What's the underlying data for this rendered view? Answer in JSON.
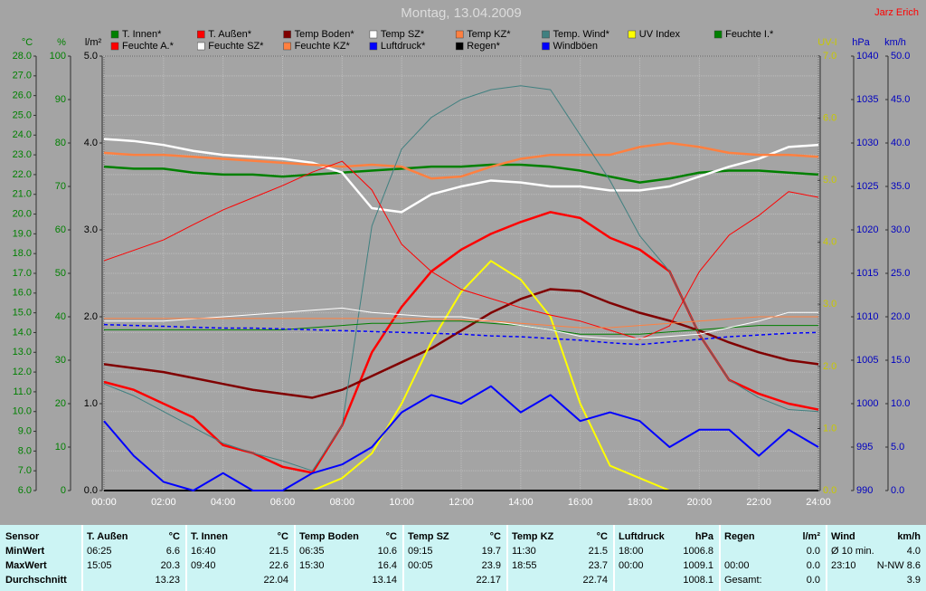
{
  "chart_data": {
    "type": "line",
    "title": "Montag, 13.04.2009",
    "author": "Jarz Erich",
    "xlim": [
      0,
      24
    ],
    "xticks": [
      {
        "value": 0,
        "label": "00:00"
      },
      {
        "value": 2,
        "label": "02:00"
      },
      {
        "value": 4,
        "label": "04:00"
      },
      {
        "value": 6,
        "label": "06:00"
      },
      {
        "value": 8,
        "label": "08:00"
      },
      {
        "value": 10,
        "label": "10:00"
      },
      {
        "value": 12,
        "label": "12:00"
      },
      {
        "value": 14,
        "label": "14:00"
      },
      {
        "value": 16,
        "label": "16:00"
      },
      {
        "value": 18,
        "label": "18:00"
      },
      {
        "value": 20,
        "label": "20:00"
      },
      {
        "value": 22,
        "label": "22:00"
      },
      {
        "value": 24,
        "label": "24:00"
      }
    ],
    "x": [
      0,
      1,
      2,
      3,
      4,
      5,
      6,
      7,
      8,
      9,
      10,
      11,
      12,
      13,
      14,
      15,
      16,
      17,
      18,
      19,
      20,
      21,
      22,
      23,
      24
    ],
    "axes": [
      {
        "label": "°C",
        "color": "#008000",
        "grid": true,
        "lim": [
          6,
          28
        ],
        "ticks": [
          {
            "value": 6,
            "label": "6.0"
          },
          {
            "value": 7,
            "label": "7.0"
          },
          {
            "value": 8,
            "label": "8.0"
          },
          {
            "value": 9,
            "label": "9.0"
          },
          {
            "value": 10,
            "label": "10.0"
          },
          {
            "value": 11,
            "label": "11.0"
          },
          {
            "value": 12,
            "label": "12.0"
          },
          {
            "value": 13,
            "label": "13.0"
          },
          {
            "value": 14,
            "label": "14.0"
          },
          {
            "value": 15,
            "label": "15.0"
          },
          {
            "value": 16,
            "label": "16.0"
          },
          {
            "value": 17,
            "label": "17.0"
          },
          {
            "value": 18,
            "label": "18.0"
          },
          {
            "value": 19,
            "label": "19.0"
          },
          {
            "value": 20,
            "label": "20.0"
          },
          {
            "value": 21,
            "label": "21.0"
          },
          {
            "value": 22,
            "label": "22.0"
          },
          {
            "value": 23,
            "label": "23.0"
          },
          {
            "value": 24,
            "label": "24.0"
          },
          {
            "value": 25,
            "label": "25.0"
          },
          {
            "value": 26,
            "label": "26.0"
          },
          {
            "value": 27,
            "label": "27.0"
          },
          {
            "value": 28,
            "label": "28.0"
          }
        ]
      },
      {
        "label": "%",
        "color": "#008000",
        "lim": [
          0,
          100
        ],
        "ticks": [
          0,
          10,
          20,
          30,
          40,
          50,
          60,
          70,
          80,
          90,
          100
        ]
      },
      {
        "label": "l/m²",
        "color": "#000000",
        "lim": [
          0,
          5
        ],
        "ticks": [
          {
            "value": 0,
            "label": "0.0"
          },
          {
            "value": 1,
            "label": "1.0"
          },
          {
            "value": 2,
            "label": "2.0"
          },
          {
            "value": 3,
            "label": "3.0"
          },
          {
            "value": 4,
            "label": "4.0"
          },
          {
            "value": 5,
            "label": "5.0"
          }
        ]
      },
      {
        "label": "UV-I",
        "color": "#c8c800",
        "lim": [
          0,
          7
        ],
        "ticks": [
          {
            "value": 0,
            "label": "0.0"
          },
          {
            "value": 1,
            "label": "1.0"
          },
          {
            "value": 2,
            "label": "2.0"
          },
          {
            "value": 3,
            "label": "3.0"
          },
          {
            "value": 4,
            "label": "4.0"
          },
          {
            "value": 5,
            "label": "5.0"
          },
          {
            "value": 6,
            "label": "6.0"
          },
          {
            "value": 7,
            "label": "7.0"
          }
        ]
      },
      {
        "label": "hPa",
        "color": "#0000c0",
        "lim": [
          990,
          1040
        ],
        "ticks": [
          990,
          995,
          1000,
          1005,
          1010,
          1015,
          1020,
          1025,
          1030,
          1035,
          1040
        ]
      },
      {
        "label": "km/h",
        "color": "#0000c0",
        "lim": [
          0,
          50
        ],
        "ticks": [
          {
            "value": 0,
            "label": "0.0"
          },
          {
            "value": 5,
            "label": "5.0"
          },
          {
            "value": 10,
            "label": "10.0"
          },
          {
            "value": 15,
            "label": "15.0"
          },
          {
            "value": 20,
            "label": "20.0"
          },
          {
            "value": 25,
            "label": "25.0"
          },
          {
            "value": 30,
            "label": "30.0"
          },
          {
            "value": 35,
            "label": "35.0"
          },
          {
            "value": 40,
            "label": "40.0"
          },
          {
            "value": 45,
            "label": "45.0"
          },
          {
            "value": 50,
            "label": "50.0"
          }
        ]
      }
    ],
    "series": [
      {
        "name": "T. Innen*",
        "color": "#008000",
        "axis": "°C",
        "line_width": 2.5,
        "values": [
          22.4,
          22.3,
          22.3,
          22.1,
          22.0,
          22.0,
          21.9,
          22.0,
          22.1,
          22.2,
          22.3,
          22.4,
          22.4,
          22.5,
          22.5,
          22.4,
          22.2,
          21.9,
          21.6,
          21.8,
          22.1,
          22.2,
          22.2,
          22.1,
          22.0
        ]
      },
      {
        "name": "T. Außen*",
        "color": "#ff0000",
        "axis": "°C",
        "line_width": 2.5,
        "values": [
          11.5,
          11.1,
          10.4,
          9.7,
          8.3,
          7.9,
          7.2,
          6.9,
          9.3,
          13.0,
          15.3,
          17.1,
          18.2,
          19.0,
          19.6,
          20.1,
          19.8,
          18.8,
          18.2,
          17.1,
          13.9,
          11.6,
          10.9,
          10.4,
          10.1
        ]
      },
      {
        "name": "Temp Boden*",
        "color": "#800000",
        "axis": "°C",
        "line_width": 2.5,
        "values": [
          12.4,
          12.2,
          12.0,
          11.7,
          11.4,
          11.1,
          10.9,
          10.7,
          11.1,
          11.8,
          12.5,
          13.2,
          14.1,
          15.0,
          15.7,
          16.2,
          16.1,
          15.5,
          15.0,
          14.6,
          14.1,
          13.5,
          13.0,
          12.6,
          12.4
        ]
      },
      {
        "name": "Temp SZ*",
        "color": "#ffffff",
        "axis": "°C",
        "line_width": 2.5,
        "values": [
          23.8,
          23.7,
          23.5,
          23.2,
          23.0,
          22.9,
          22.8,
          22.6,
          22.1,
          20.3,
          20.1,
          21.0,
          21.4,
          21.7,
          21.6,
          21.4,
          21.4,
          21.2,
          21.2,
          21.4,
          21.9,
          22.4,
          22.8,
          23.4,
          23.5
        ]
      },
      {
        "name": "Temp KZ*",
        "color": "#ff8040",
        "axis": "°C",
        "line_width": 2.5,
        "values": [
          23.1,
          23.0,
          23.0,
          22.9,
          22.8,
          22.7,
          22.6,
          22.5,
          22.4,
          22.5,
          22.4,
          21.8,
          21.9,
          22.4,
          22.8,
          23.0,
          23.0,
          23.0,
          23.4,
          23.6,
          23.4,
          23.1,
          23.0,
          23.0,
          22.9
        ]
      },
      {
        "name": "Temp. Wind*",
        "color": "#408080",
        "axis": "°C",
        "line_width": 1,
        "values": [
          11.4,
          10.8,
          10.0,
          9.2,
          8.4,
          7.9,
          7.5,
          7.0,
          9.3,
          19.4,
          23.3,
          24.9,
          25.8,
          26.3,
          26.5,
          26.3,
          24.0,
          21.7,
          18.9,
          17.1,
          13.9,
          11.6,
          10.7,
          10.1,
          10.0
        ]
      },
      {
        "name": "UV Index",
        "color": "#ffff00",
        "axis": "UV-I",
        "line_width": 2,
        "values": [
          0,
          0,
          0,
          0,
          0,
          0,
          0,
          0,
          0.2,
          0.6,
          1.4,
          2.4,
          3.2,
          3.7,
          3.4,
          2.8,
          1.4,
          0.4,
          0.2,
          0,
          0,
          0,
          0,
          0,
          0
        ]
      },
      {
        "name": "Feuchte I.*",
        "color": "#008000",
        "axis": "%",
        "line_width": 1,
        "values": [
          37,
          37,
          37,
          37,
          37,
          37,
          37,
          37.5,
          38,
          38.5,
          38.5,
          39,
          39,
          38.5,
          38,
          37,
          36,
          36,
          36,
          36.5,
          37,
          37.5,
          38,
          38,
          38
        ]
      },
      {
        "name": "Feuchte A.*",
        "color": "#ff0000",
        "axis": "%",
        "line_width": 1,
        "values": [
          52.9,
          55.3,
          57.7,
          61.2,
          64.6,
          67.4,
          70.2,
          73.3,
          75.8,
          69.2,
          56.7,
          50.4,
          46.3,
          44.2,
          42.1,
          40.4,
          39.0,
          36.9,
          34.8,
          37.9,
          50.4,
          58.8,
          63.3,
          68.8,
          67.5
        ]
      },
      {
        "name": "Feuchte SZ*",
        "color": "#ffffff",
        "axis": "%",
        "line_width": 1,
        "values": [
          39,
          39,
          39,
          39.5,
          40,
          40.5,
          41,
          41.5,
          42,
          41,
          40.5,
          40,
          40,
          39,
          38,
          37,
          35.5,
          35,
          35,
          35.5,
          36,
          37.5,
          39,
          41,
          41
        ]
      },
      {
        "name": "Feuchte KZ*",
        "color": "#ff8040",
        "axis": "%",
        "line_width": 1,
        "values": [
          39.6,
          39.6,
          39.6,
          39.6,
          39.6,
          39.6,
          39.6,
          39.6,
          39.6,
          39.6,
          39.6,
          39.5,
          39.3,
          39,
          38.5,
          38,
          37.5,
          37.5,
          38,
          38.5,
          39,
          39.5,
          40,
          40,
          40
        ]
      },
      {
        "name": "Luftdruck*",
        "color": "#0000ff",
        "axis": "hPa",
        "line_width": 1.5,
        "dashed": true,
        "values": [
          1009.1,
          1009.0,
          1008.9,
          1008.8,
          1008.7,
          1008.7,
          1008.6,
          1008.5,
          1008.4,
          1008.3,
          1008.2,
          1008.1,
          1008.0,
          1007.8,
          1007.7,
          1007.5,
          1007.3,
          1007.0,
          1006.8,
          1007.1,
          1007.4,
          1007.7,
          1007.9,
          1008.1,
          1008.2
        ]
      },
      {
        "name": "Regen*",
        "color": "#000000",
        "axis": "l/m²",
        "line_width": 2,
        "values": [
          0,
          0,
          0,
          0,
          0,
          0,
          0,
          0,
          0,
          0,
          0,
          0,
          0,
          0,
          0,
          0,
          0,
          0,
          0,
          0,
          0,
          0,
          0,
          0,
          0
        ]
      },
      {
        "name": "Windböen",
        "color": "#0000ff",
        "axis": "km/h",
        "line_width": 2,
        "values": [
          8,
          4,
          1,
          0,
          2,
          0,
          0,
          2,
          3,
          5,
          9,
          11,
          10,
          12,
          9,
          11,
          8,
          9,
          8,
          5,
          7,
          7,
          4,
          7,
          5
        ]
      }
    ]
  },
  "table": {
    "header": "Sensor",
    "row_labels": [
      "MinWert",
      "MaxWert",
      "Durchschnitt"
    ],
    "groups": [
      {
        "name": "T. Außen",
        "unit": "°C",
        "rows": [
          [
            "06:25",
            "6.6"
          ],
          [
            "15:05",
            "20.3"
          ],
          [
            null,
            "13.23"
          ]
        ]
      },
      {
        "name": "T. Innen",
        "unit": "°C",
        "rows": [
          [
            "16:40",
            "21.5"
          ],
          [
            "09:40",
            "22.6"
          ],
          [
            null,
            "22.04"
          ]
        ]
      },
      {
        "name": "Temp Boden",
        "unit": "°C",
        "rows": [
          [
            "06:35",
            "10.6"
          ],
          [
            "15:30",
            "16.4"
          ],
          [
            null,
            "13.14"
          ]
        ]
      },
      {
        "name": "Temp SZ",
        "unit": "°C",
        "rows": [
          [
            "09:15",
            "19.7"
          ],
          [
            "00:05",
            "23.9"
          ],
          [
            null,
            "22.17"
          ]
        ]
      },
      {
        "name": "Temp KZ",
        "unit": "°C",
        "rows": [
          [
            "11:30",
            "21.5"
          ],
          [
            "18:55",
            "23.7"
          ],
          [
            null,
            "22.74"
          ]
        ]
      },
      {
        "name": "Luftdruck",
        "unit": "hPa",
        "rows": [
          [
            "18:00",
            "1006.8"
          ],
          [
            "00:00",
            "1009.1"
          ],
          [
            null,
            "1008.1"
          ]
        ]
      },
      {
        "name": "Regen",
        "unit": "l/m²",
        "rows": [
          [
            null,
            "0.0"
          ],
          [
            "00:00",
            "0.0"
          ],
          [
            "Gesamt:",
            "0.0"
          ]
        ]
      },
      {
        "name": "Wind",
        "unit": "km/h",
        "rows": [
          [
            "Ø 10 min.",
            "4.0"
          ],
          [
            "23:10",
            "N-NW 8.6"
          ],
          [
            null,
            "3.9"
          ]
        ]
      }
    ]
  }
}
